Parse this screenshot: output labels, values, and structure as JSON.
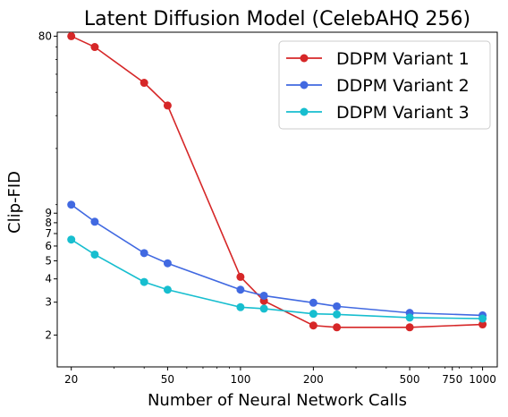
{
  "chart_data": {
    "type": "line",
    "title": "Latent Diffusion Model (CelebAHQ 256)",
    "xlabel": "Number of Neural Network Calls",
    "ylabel": "Clip-FID",
    "x_scale": "log",
    "y_scale": "log",
    "xlim": [
      17.5,
      1150
    ],
    "ylim": [
      1.35,
      84
    ],
    "x_ticks": [
      20,
      50,
      100,
      200,
      500,
      750,
      1000
    ],
    "x_tick_labels": [
      "20",
      "50",
      "100",
      "200",
      "500",
      "750",
      "1000"
    ],
    "y_ticks": [
      2,
      3,
      4,
      5,
      6,
      7,
      8,
      9,
      80
    ],
    "y_tick_labels": [
      "2",
      "3",
      "4",
      "5",
      "6",
      "7",
      "8",
      "9",
      "80"
    ],
    "grid": false,
    "legend_position": "top-right",
    "x": [
      20,
      25,
      40,
      50,
      100,
      125,
      200,
      250,
      500,
      1000
    ],
    "series": [
      {
        "name": "DDPM Variant 1",
        "color": "#d62728",
        "values": [
          80,
          70,
          45,
          34,
          4.1,
          3.05,
          2.25,
          2.2,
          2.2,
          2.28
        ]
      },
      {
        "name": "DDPM Variant 2",
        "color": "#4169e1",
        "values": [
          10.0,
          8.1,
          5.5,
          4.85,
          3.5,
          3.25,
          2.98,
          2.85,
          2.63,
          2.55
        ]
      },
      {
        "name": "DDPM Variant 3",
        "color": "#17becf",
        "values": [
          6.5,
          5.4,
          3.85,
          3.5,
          2.82,
          2.77,
          2.6,
          2.58,
          2.48,
          2.45
        ]
      }
    ]
  }
}
